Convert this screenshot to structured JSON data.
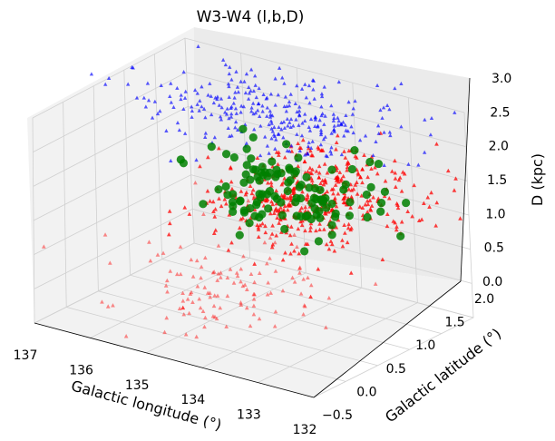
{
  "chart_data": {
    "type": "scatter3d",
    "title": "W3-W4 (l,b,D)",
    "xlabel": "Galactic longitude (°)",
    "ylabel": "Galactic latitude (°)",
    "zlabel": "D (kpc)",
    "xlim": [
      137,
      132
    ],
    "ylim": [
      -0.5,
      2.0
    ],
    "zlim": [
      0.0,
      3.0
    ],
    "x_ticks": [
      "137",
      "136",
      "135",
      "134",
      "133",
      "132"
    ],
    "y_ticks": [
      "−0.5",
      "0.0",
      "0.5",
      "1.0",
      "1.5",
      "2.0"
    ],
    "z_ticks": [
      "0.0",
      "0.5",
      "1.0",
      "1.5",
      "2.0",
      "2.5",
      "3.0"
    ],
    "grid": true,
    "series": [
      {
        "color": "#ff0000",
        "marker": "triangle",
        "note_points": 600
      },
      {
        "color": "#0000ff",
        "marker": "triangle",
        "note_points": 300
      },
      {
        "color": "#008000",
        "marker": "circle",
        "note_points": 120
      }
    ]
  }
}
